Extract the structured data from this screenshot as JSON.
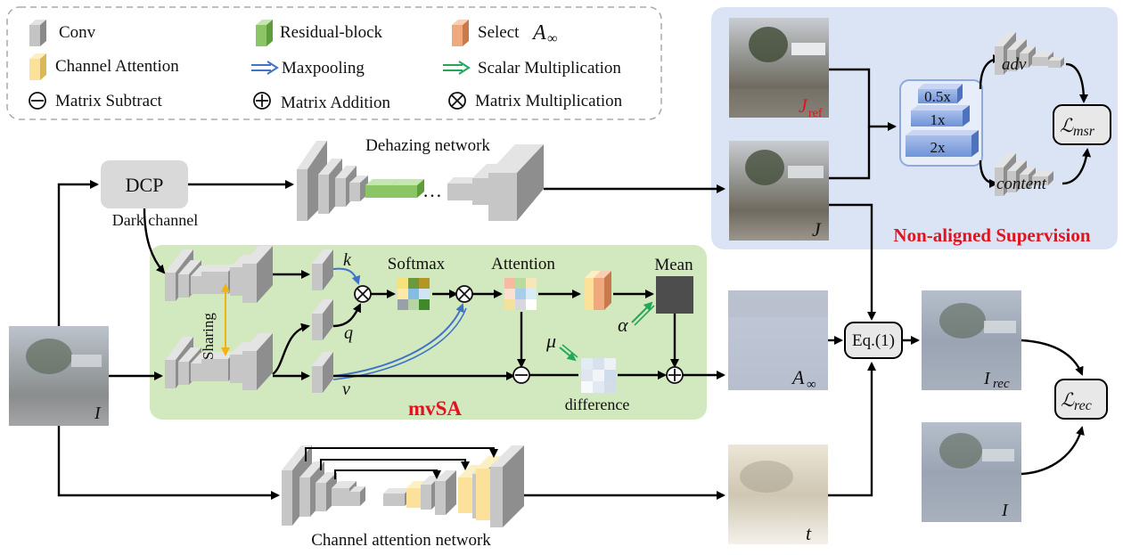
{
  "legend": {
    "conv": "Conv",
    "residual": "Residual-block",
    "select": "Select",
    "select_sym": "A",
    "select_sub": "∞",
    "channel_attention": "Channel Attention",
    "maxpooling": "Maxpooling",
    "scalar_mult": "Scalar Multiplication",
    "matrix_subtract": "Matrix Subtract",
    "matrix_addition": "Matrix Addition",
    "matrix_mult": "Matrix Multiplication"
  },
  "top": {
    "dcp": "DCP",
    "dark_channel": "Dark channel",
    "dehazing_network": "Dehazing network",
    "ellipsis": "…"
  },
  "mvsa": {
    "title": "mvSA",
    "sharing": "Sharing",
    "k": "k",
    "q": "q",
    "v": "v",
    "softmax": "Softmax",
    "attention": "Attention",
    "mean": "Mean",
    "mu": "μ",
    "alpha": "α",
    "difference": "difference"
  },
  "supervision": {
    "title": "Non-aligned Supervision",
    "j_ref_main": "J",
    "j_ref_sub": "ref",
    "j": "J",
    "scales": [
      "0.5x",
      "1x",
      "2x"
    ],
    "adv": "adv",
    "content": "content",
    "l_msr_main": "ℒ",
    "l_msr_sub": "msr"
  },
  "outputs": {
    "a_inf_main": "A",
    "a_inf_sub": "∞",
    "eq": "Eq.(1)",
    "i_rec_main": "I",
    "i_rec_sub": "rec",
    "l_rec_main": "ℒ",
    "l_rec_sub": "rec",
    "i": "I",
    "t": "t",
    "input_i": "I"
  },
  "bottom": {
    "channel_attention_network": "Channel attention network"
  },
  "colors": {
    "accent_red": "#e0141e",
    "mvsa_bg": "#d2e8bf",
    "supervision_bg": "#dbe4f5",
    "maxpool_blue": "#3f74c4",
    "scalar_green": "#22a85a",
    "sharing_orange": "#f1b30f"
  }
}
